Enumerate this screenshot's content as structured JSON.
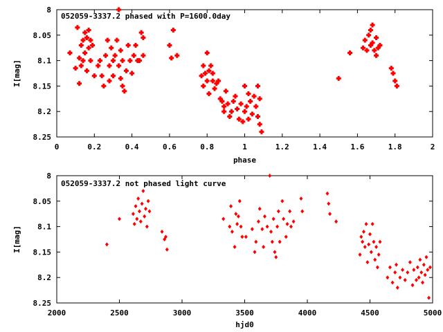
{
  "chart_data": [
    {
      "type": "scatter",
      "title": "052059-3337.2 phased with P=1600.0day",
      "xlabel": "phase",
      "ylabel": "I[mag]",
      "xlim": [
        0,
        2
      ],
      "ylim": [
        8.25,
        8.0
      ],
      "y_inverted": true,
      "x_ticks": [
        "0",
        "0.2",
        "0.4",
        "0.6",
        "0.8",
        "1",
        "1.2",
        "1.4",
        "1.6",
        "1.8",
        "2"
      ],
      "y_ticks": [
        "8",
        "8.05",
        "8.1",
        "8.15",
        "8.2",
        "8.25"
      ],
      "marker_color": "#ff0000",
      "grid": false,
      "series": [
        {
          "x": [
            0.07,
            0.1,
            0.11,
            0.12,
            0.12,
            0.13,
            0.13,
            0.14,
            0.14,
            0.15,
            0.15,
            0.16,
            0.16,
            0.17,
            0.17,
            0.18,
            0.18,
            0.19,
            0.2,
            0.22,
            0.23,
            0.24,
            0.25,
            0.26,
            0.27,
            0.28,
            0.28,
            0.29,
            0.3,
            0.3,
            0.31,
            0.32,
            0.33,
            0.33,
            0.34,
            0.34,
            0.35,
            0.35,
            0.36,
            0.37,
            0.38,
            0.39,
            0.4,
            0.41,
            0.42,
            0.43,
            0.44,
            0.45,
            0.46,
            0.46,
            0.6,
            0.61,
            0.62,
            0.64,
            0.77,
            0.78,
            0.78,
            0.79,
            0.8,
            0.8,
            0.81,
            0.81,
            0.82,
            0.83,
            0.83,
            0.84,
            0.85,
            0.86,
            0.87,
            0.88,
            0.89,
            0.89,
            0.9,
            0.91,
            0.92,
            0.93,
            0.94,
            0.95,
            0.96,
            0.97,
            0.98,
            0.99,
            1.0,
            1.0,
            1.01,
            1.02,
            1.02,
            1.03,
            1.04,
            1.05,
            1.06,
            1.07,
            1.07,
            1.08,
            1.08,
            1.09,
            1.5,
            1.56,
            1.63,
            1.64,
            1.65,
            1.66,
            1.67,
            1.67,
            1.68,
            1.68,
            1.69,
            1.7,
            1.7,
            1.71,
            1.72,
            1.78,
            1.79,
            1.8,
            1.81
          ],
          "y": [
            8.085,
            8.115,
            8.035,
            8.095,
            8.145,
            8.07,
            8.11,
            8.06,
            8.1,
            8.045,
            8.085,
            8.055,
            8.12,
            8.04,
            8.075,
            8.06,
            8.1,
            8.07,
            8.13,
            8.11,
            8.1,
            8.13,
            8.15,
            8.09,
            8.06,
            8.11,
            8.14,
            8.075,
            8.1,
            8.13,
            8.09,
            8.06,
            8.11,
            8.0,
            8.08,
            8.135,
            8.1,
            8.15,
            8.16,
            8.12,
            8.07,
            8.1,
            8.125,
            8.09,
            8.07,
            8.1,
            8.1,
            8.045,
            8.055,
            8.09,
            8.07,
            8.095,
            8.04,
            8.09,
            8.13,
            8.11,
            8.15,
            8.125,
            8.085,
            8.14,
            8.12,
            8.165,
            8.11,
            8.14,
            8.125,
            8.155,
            8.145,
            8.14,
            8.175,
            8.18,
            8.2,
            8.19,
            8.16,
            8.185,
            8.21,
            8.2,
            8.18,
            8.17,
            8.195,
            8.215,
            8.185,
            8.22,
            8.15,
            8.2,
            8.19,
            8.165,
            8.215,
            8.18,
            8.205,
            8.17,
            8.19,
            8.15,
            8.21,
            8.175,
            8.225,
            8.24,
            8.135,
            8.085,
            8.075,
            8.06,
            8.08,
            8.05,
            8.04,
            8.07,
            8.03,
            8.065,
            8.08,
            8.055,
            8.09,
            8.075,
            8.07,
            8.115,
            8.125,
            8.14,
            8.15
          ]
        }
      ]
    },
    {
      "type": "scatter",
      "title": "052059-3337.2 not phased light curve",
      "xlabel": "hjd0",
      "ylabel": "I[mag]",
      "xlim": [
        2000,
        5000
      ],
      "ylim": [
        8.25,
        8.0
      ],
      "y_inverted": true,
      "x_ticks": [
        "2000",
        "2500",
        "3000",
        "3500",
        "4000",
        "4500",
        "5000"
      ],
      "y_ticks": [
        "8",
        "8.05",
        "8.1",
        "8.15",
        "8.2",
        "8.25"
      ],
      "marker_color": "#ff0000",
      "grid": false,
      "series": [
        {
          "x": [
            2400,
            2500,
            2610,
            2620,
            2630,
            2640,
            2650,
            2660,
            2670,
            2680,
            2690,
            2700,
            2710,
            2720,
            2730,
            2740,
            2840,
            2860,
            2870,
            2880,
            3330,
            3380,
            3390,
            3400,
            3420,
            3430,
            3440,
            3450,
            3460,
            3470,
            3480,
            3510,
            3560,
            3580,
            3590,
            3610,
            3620,
            3640,
            3650,
            3660,
            3680,
            3700,
            3710,
            3720,
            3730,
            3740,
            3750,
            3760,
            3770,
            3780,
            3800,
            3810,
            3830,
            3840,
            3860,
            3870,
            3890,
            3950,
            3960,
            4160,
            4170,
            4180,
            4230,
            4420,
            4430,
            4440,
            4450,
            4460,
            4470,
            4480,
            4490,
            4500,
            4510,
            4520,
            4530,
            4540,
            4550,
            4560,
            4570,
            4580,
            4640,
            4660,
            4680,
            4700,
            4710,
            4720,
            4740,
            4760,
            4780,
            4800,
            4820,
            4840,
            4850,
            4870,
            4880,
            4890,
            4900,
            4910,
            4920,
            4930,
            4940,
            4950,
            4960,
            4970,
            4980
          ],
          "y": [
            8.135,
            8.085,
            8.075,
            8.095,
            8.06,
            8.085,
            8.045,
            8.07,
            8.09,
            8.055,
            8.03,
            8.08,
            8.065,
            8.1,
            8.05,
            8.07,
            8.11,
            8.125,
            8.12,
            8.145,
            8.085,
            8.1,
            8.06,
            8.11,
            8.14,
            8.075,
            8.095,
            8.08,
            8.05,
            8.1,
            8.12,
            8.12,
            8.105,
            8.15,
            8.13,
            8.09,
            8.065,
            8.105,
            8.14,
            8.08,
            8.1,
            8.0,
            8.11,
            8.13,
            8.085,
            8.15,
            8.16,
            8.1,
            8.07,
            8.13,
            8.05,
            8.085,
            8.12,
            8.095,
            8.07,
            8.1,
            8.09,
            8.045,
            8.07,
            8.035,
            8.055,
            8.075,
            8.09,
            8.155,
            8.12,
            8.13,
            8.11,
            8.14,
            8.095,
            8.17,
            8.135,
            8.115,
            8.15,
            8.095,
            8.13,
            8.165,
            8.14,
            8.18,
            8.155,
            8.13,
            8.2,
            8.18,
            8.21,
            8.19,
            8.175,
            8.22,
            8.2,
            8.185,
            8.205,
            8.19,
            8.17,
            8.215,
            8.185,
            8.205,
            8.18,
            8.2,
            8.165,
            8.19,
            8.21,
            8.175,
            8.195,
            8.16,
            8.185,
            8.24,
            8.18
          ]
        }
      ]
    }
  ]
}
